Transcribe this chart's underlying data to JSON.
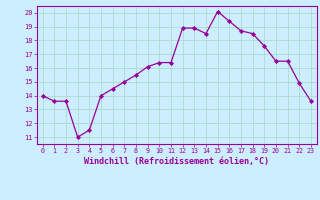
{
  "x": [
    0,
    1,
    2,
    3,
    4,
    5,
    6,
    7,
    8,
    9,
    10,
    11,
    12,
    13,
    14,
    15,
    16,
    17,
    18,
    19,
    20,
    21,
    22,
    23
  ],
  "y": [
    14.0,
    13.6,
    13.6,
    11.0,
    11.5,
    14.0,
    14.5,
    15.0,
    15.5,
    16.1,
    16.4,
    16.4,
    18.9,
    18.9,
    18.5,
    20.1,
    19.4,
    18.7,
    18.5,
    17.6,
    16.5,
    16.5,
    14.9,
    13.6
  ],
  "xlim": [
    -0.5,
    23.5
  ],
  "ylim": [
    10.5,
    20.5
  ],
  "yticks": [
    11,
    12,
    13,
    14,
    15,
    16,
    17,
    18,
    19,
    20
  ],
  "xticks": [
    0,
    1,
    2,
    3,
    4,
    5,
    6,
    7,
    8,
    9,
    10,
    11,
    12,
    13,
    14,
    15,
    16,
    17,
    18,
    19,
    20,
    21,
    22,
    23
  ],
  "xlabel": "Windchill (Refroidissement éolien,°C)",
  "line_color": "#990099",
  "marker": "D",
  "marker_size": 2.0,
  "bg_color": "#cceeff",
  "grid_color": "#aaddcc",
  "tick_color": "#990099",
  "label_color": "#990099",
  "spine_color": "#990099"
}
